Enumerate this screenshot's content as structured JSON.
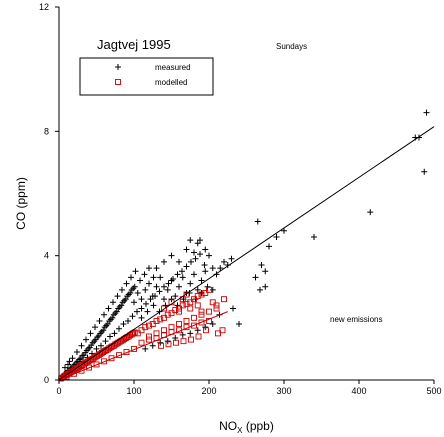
{
  "chart_data": {
    "type": "scatter",
    "title": "Jagtvej 1995",
    "subtitle": "Sundays",
    "annotation": "new emissions",
    "xlabel": "NO",
    "xlabel_sub": "X",
    "xlabel_unit": " (ppb)",
    "ylabel": "CO (ppm)",
    "xlim": [
      0,
      500
    ],
    "ylim": [
      0,
      12
    ],
    "xticks": [
      0,
      100,
      200,
      300,
      400,
      500
    ],
    "yticks": [
      0,
      4,
      8,
      12
    ],
    "grid": false,
    "legend_position": "top-left",
    "series": [
      {
        "name": "measured",
        "marker": "plus",
        "color": "#000000",
        "points": [
          [
            3,
            0.05
          ],
          [
            5,
            0.12
          ],
          [
            7,
            0.18
          ],
          [
            9,
            0.22
          ],
          [
            11,
            0.28
          ],
          [
            13,
            0.3
          ],
          [
            15,
            0.38
          ],
          [
            17,
            0.4
          ],
          [
            19,
            0.45
          ],
          [
            21,
            0.5
          ],
          [
            23,
            0.55
          ],
          [
            25,
            0.6
          ],
          [
            27,
            0.66
          ],
          [
            29,
            0.7
          ],
          [
            31,
            0.78
          ],
          [
            33,
            0.8
          ],
          [
            35,
            0.88
          ],
          [
            37,
            0.95
          ],
          [
            39,
            1.0
          ],
          [
            41,
            1.05
          ],
          [
            43,
            1.12
          ],
          [
            45,
            1.2
          ],
          [
            47,
            1.25
          ],
          [
            49,
            1.3
          ],
          [
            51,
            1.38
          ],
          [
            53,
            1.42
          ],
          [
            55,
            1.5
          ],
          [
            57,
            1.55
          ],
          [
            59,
            1.6
          ],
          [
            61,
            1.7
          ],
          [
            63,
            1.75
          ],
          [
            65,
            1.8
          ],
          [
            67,
            1.9
          ],
          [
            69,
            1.95
          ],
          [
            71,
            2.0
          ],
          [
            73,
            2.1
          ],
          [
            75,
            2.15
          ],
          [
            77,
            2.2
          ],
          [
            79,
            2.3
          ],
          [
            81,
            2.35
          ],
          [
            83,
            2.4
          ],
          [
            85,
            2.5
          ],
          [
            87,
            2.55
          ],
          [
            89,
            2.6
          ],
          [
            91,
            2.7
          ],
          [
            93,
            2.75
          ],
          [
            95,
            2.8
          ],
          [
            97,
            2.9
          ],
          [
            99,
            2.95
          ],
          [
            101,
            3.0
          ],
          [
            12,
            0.5
          ],
          [
            18,
            0.7
          ],
          [
            24,
            0.9
          ],
          [
            30,
            1.1
          ],
          [
            36,
            1.3
          ],
          [
            42,
            1.5
          ],
          [
            48,
            1.7
          ],
          [
            54,
            1.9
          ],
          [
            60,
            2.1
          ],
          [
            66,
            2.3
          ],
          [
            72,
            2.5
          ],
          [
            78,
            2.7
          ],
          [
            84,
            2.9
          ],
          [
            90,
            3.1
          ],
          [
            96,
            3.3
          ],
          [
            102,
            3.5
          ],
          [
            108,
            3.2
          ],
          [
            114,
            3.4
          ],
          [
            120,
            3.6
          ],
          [
            126,
            3.3
          ],
          [
            20,
            0.3
          ],
          [
            26,
            0.45
          ],
          [
            32,
            0.6
          ],
          [
            38,
            0.72
          ],
          [
            44,
            0.85
          ],
          [
            50,
            1.0
          ],
          [
            56,
            1.1
          ],
          [
            62,
            1.25
          ],
          [
            68,
            1.4
          ],
          [
            74,
            1.5
          ],
          [
            80,
            1.65
          ],
          [
            86,
            1.8
          ],
          [
            92,
            1.9
          ],
          [
            98,
            2.05
          ],
          [
            104,
            2.2
          ],
          [
            110,
            2.3
          ],
          [
            116,
            2.45
          ],
          [
            122,
            2.6
          ],
          [
            128,
            2.7
          ],
          [
            134,
            2.85
          ],
          [
            140,
            3.0
          ],
          [
            146,
            3.1
          ],
          [
            152,
            3.25
          ],
          [
            158,
            3.4
          ],
          [
            164,
            3.5
          ],
          [
            170,
            3.65
          ],
          [
            176,
            3.8
          ],
          [
            182,
            3.9
          ],
          [
            188,
            4.05
          ],
          [
            194,
            3.7
          ],
          [
            100,
            2.5
          ],
          [
            105,
            2.8
          ],
          [
            110,
            2.6
          ],
          [
            115,
            2.9
          ],
          [
            120,
            3.1
          ],
          [
            125,
            2.7
          ],
          [
            130,
            3.0
          ],
          [
            135,
            3.3
          ],
          [
            140,
            2.6
          ],
          [
            145,
            2.9
          ],
          [
            150,
            3.2
          ],
          [
            155,
            2.7
          ],
          [
            160,
            3.0
          ],
          [
            165,
            3.3
          ],
          [
            170,
            2.8
          ],
          [
            175,
            3.1
          ],
          [
            180,
            3.4
          ],
          [
            185,
            2.9
          ],
          [
            190,
            3.2
          ],
          [
            195,
            3.5
          ],
          [
            110,
            2.0
          ],
          [
            118,
            2.2
          ],
          [
            126,
            2.4
          ],
          [
            134,
            2.2
          ],
          [
            142,
            2.4
          ],
          [
            150,
            2.6
          ],
          [
            158,
            2.4
          ],
          [
            166,
            2.6
          ],
          [
            174,
            2.8
          ],
          [
            182,
            2.6
          ],
          [
            190,
            2.8
          ],
          [
            198,
            3.0
          ],
          [
            205,
            2.9
          ],
          [
            210,
            3.4
          ],
          [
            215,
            3.6
          ],
          [
            220,
            3.8
          ],
          [
            225,
            3.7
          ],
          [
            230,
            3.9
          ],
          [
            160,
            3.8
          ],
          [
            170,
            4.2
          ],
          [
            175,
            4.5
          ],
          [
            180,
            4.1
          ],
          [
            185,
            4.4
          ],
          [
            150,
            4.0
          ],
          [
            140,
            3.8
          ],
          [
            130,
            3.6
          ],
          [
            200,
            4.0
          ],
          [
            205,
            3.6
          ],
          [
            195,
            4.2
          ],
          [
            188,
            4.5
          ],
          [
            265,
            5.1
          ],
          [
            270,
            3.7
          ],
          [
            275,
            3.5
          ],
          [
            280,
            4.3
          ],
          [
            290,
            4.6
          ],
          [
            300,
            4.8
          ],
          [
            340,
            4.6
          ],
          [
            415,
            5.4
          ],
          [
            475,
            7.8
          ],
          [
            480,
            7.8
          ],
          [
            487,
            6.7
          ],
          [
            490,
            8.6
          ],
          [
            275,
            3.0
          ],
          [
            262,
            3.3
          ],
          [
            268,
            2.9
          ],
          [
            240,
            1.8
          ],
          [
            232,
            2.3
          ],
          [
            214,
            2.1
          ],
          [
            205,
            1.8
          ],
          [
            195,
            1.7
          ],
          [
            185,
            1.6
          ],
          [
            175,
            1.5
          ],
          [
            165,
            1.45
          ],
          [
            155,
            1.35
          ],
          [
            145,
            1.25
          ],
          [
            135,
            1.2
          ],
          [
            125,
            1.1
          ],
          [
            115,
            1.0
          ],
          [
            8,
            0.4
          ],
          [
            14,
            0.6
          ]
        ]
      },
      {
        "name": "modelled",
        "marker": "square",
        "color": "#cc0000",
        "points": [
          [
            3,
            0.05
          ],
          [
            5,
            0.08
          ],
          [
            7,
            0.12
          ],
          [
            9,
            0.15
          ],
          [
            11,
            0.18
          ],
          [
            13,
            0.2
          ],
          [
            15,
            0.24
          ],
          [
            17,
            0.27
          ],
          [
            19,
            0.3
          ],
          [
            21,
            0.33
          ],
          [
            23,
            0.36
          ],
          [
            25,
            0.38
          ],
          [
            27,
            0.42
          ],
          [
            29,
            0.45
          ],
          [
            31,
            0.48
          ],
          [
            33,
            0.5
          ],
          [
            35,
            0.54
          ],
          [
            37,
            0.57
          ],
          [
            39,
            0.6
          ],
          [
            41,
            0.63
          ],
          [
            43,
            0.66
          ],
          [
            45,
            0.68
          ],
          [
            47,
            0.72
          ],
          [
            49,
            0.75
          ],
          [
            51,
            0.78
          ],
          [
            53,
            0.8
          ],
          [
            55,
            0.84
          ],
          [
            57,
            0.87
          ],
          [
            59,
            0.9
          ],
          [
            61,
            0.93
          ],
          [
            63,
            0.96
          ],
          [
            65,
            0.98
          ],
          [
            67,
            1.02
          ],
          [
            69,
            1.05
          ],
          [
            71,
            1.08
          ],
          [
            73,
            1.1
          ],
          [
            75,
            1.14
          ],
          [
            77,
            1.17
          ],
          [
            79,
            1.2
          ],
          [
            81,
            1.23
          ],
          [
            83,
            1.26
          ],
          [
            85,
            1.28
          ],
          [
            87,
            1.32
          ],
          [
            89,
            1.35
          ],
          [
            91,
            1.38
          ],
          [
            93,
            1.4
          ],
          [
            95,
            1.44
          ],
          [
            97,
            1.47
          ],
          [
            99,
            1.5
          ],
          [
            101,
            1.53
          ],
          [
            105,
            1.5
          ],
          [
            110,
            1.6
          ],
          [
            115,
            1.7
          ],
          [
            120,
            1.75
          ],
          [
            125,
            1.8
          ],
          [
            130,
            1.9
          ],
          [
            135,
            1.95
          ],
          [
            140,
            2.0
          ],
          [
            145,
            2.1
          ],
          [
            150,
            2.15
          ],
          [
            155,
            2.25
          ],
          [
            160,
            2.3
          ],
          [
            165,
            2.4
          ],
          [
            170,
            2.45
          ],
          [
            175,
            2.5
          ],
          [
            180,
            2.6
          ],
          [
            185,
            2.7
          ],
          [
            190,
            2.75
          ],
          [
            195,
            2.8
          ],
          [
            200,
            2.9
          ],
          [
            120,
            1.4
          ],
          [
            130,
            1.5
          ],
          [
            140,
            1.6
          ],
          [
            150,
            1.7
          ],
          [
            160,
            1.8
          ],
          [
            170,
            1.9
          ],
          [
            180,
            2.0
          ],
          [
            190,
            2.1
          ],
          [
            200,
            2.2
          ],
          [
            210,
            2.3
          ],
          [
            110,
            1.2
          ],
          [
            120,
            1.3
          ],
          [
            130,
            1.35
          ],
          [
            140,
            1.45
          ],
          [
            150,
            1.55
          ],
          [
            160,
            1.6
          ],
          [
            170,
            1.7
          ],
          [
            180,
            1.75
          ],
          [
            190,
            1.85
          ],
          [
            200,
            1.9
          ],
          [
            140,
            2.3
          ],
          [
            150,
            2.5
          ],
          [
            160,
            2.2
          ],
          [
            165,
            2.6
          ],
          [
            170,
            2.75
          ],
          [
            175,
            2.3
          ],
          [
            185,
            2.4
          ],
          [
            190,
            2.2
          ],
          [
            205,
            2.5
          ],
          [
            210,
            2.4
          ],
          [
            220,
            2.6
          ],
          [
            218,
            1.6
          ],
          [
            212,
            1.5
          ],
          [
            196,
            1.6
          ],
          [
            186,
            1.4
          ],
          [
            176,
            1.3
          ],
          [
            166,
            1.25
          ],
          [
            156,
            1.2
          ],
          [
            146,
            1.15
          ],
          [
            136,
            1.1
          ],
          [
            60,
            0.6
          ],
          [
            70,
            0.7
          ],
          [
            80,
            0.8
          ],
          [
            90,
            0.9
          ],
          [
            100,
            1.0
          ],
          [
            20,
            0.2
          ],
          [
            30,
            0.3
          ],
          [
            40,
            0.4
          ],
          [
            50,
            0.5
          ],
          [
            10,
            0.1
          ]
        ]
      }
    ],
    "fits": [
      {
        "color": "#000000",
        "x": [
          0,
          500
        ],
        "y": [
          0,
          8.15
        ]
      },
      {
        "color": "#cc0000",
        "x": [
          0,
          225
        ],
        "y": [
          0,
          2.2
        ]
      }
    ]
  }
}
